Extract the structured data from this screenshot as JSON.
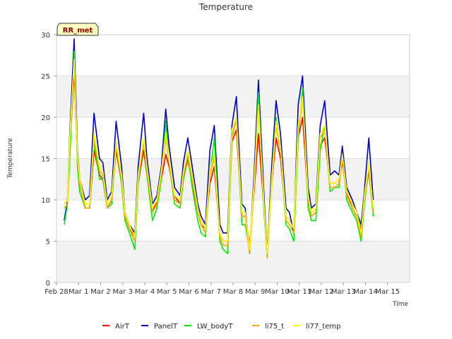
{
  "chart_data": {
    "type": "line",
    "title": "Temperature",
    "xlabel": "Time",
    "ylabel": "Temperature",
    "badge": "RR_met",
    "ylim": [
      0,
      30
    ],
    "yticks": [
      0,
      5,
      10,
      15,
      20,
      25,
      30
    ],
    "xlim": [
      0,
      16
    ],
    "xticks": [
      {
        "x": 0,
        "label": "Feb 28"
      },
      {
        "x": 1,
        "label": "Mar 1"
      },
      {
        "x": 2,
        "label": "Mar 2"
      },
      {
        "x": 3,
        "label": "Mar 3"
      },
      {
        "x": 4,
        "label": "Mar 4"
      },
      {
        "x": 5,
        "label": "Mar 5"
      },
      {
        "x": 6,
        "label": "Mar 6"
      },
      {
        "x": 7,
        "label": "Mar 7"
      },
      {
        "x": 8,
        "label": "Mar 8"
      },
      {
        "x": 9,
        "label": "Mar 9"
      },
      {
        "x": 10,
        "label": "Mar 10"
      },
      {
        "x": 11,
        "label": "Mar 11"
      },
      {
        "x": 12,
        "label": "Mar 12"
      },
      {
        "x": 13,
        "label": "Mar 13"
      },
      {
        "x": 14,
        "label": "Mar 14"
      },
      {
        "x": 15,
        "label": "Mar 15"
      }
    ],
    "grid": true,
    "bands": true,
    "legend_position": "bottom",
    "x": [
      0.35,
      0.5,
      0.6,
      0.8,
      0.95,
      1.05,
      1.3,
      1.5,
      1.7,
      1.95,
      2.1,
      2.3,
      2.5,
      2.7,
      2.95,
      3.1,
      3.3,
      3.55,
      3.7,
      3.95,
      4.1,
      4.35,
      4.55,
      4.75,
      4.95,
      5.1,
      5.35,
      5.6,
      5.75,
      5.95,
      6.15,
      6.4,
      6.55,
      6.75,
      6.95,
      7.15,
      7.4,
      7.55,
      7.75,
      7.95,
      8.15,
      8.4,
      8.55,
      8.75,
      8.95,
      9.15,
      9.4,
      9.55,
      9.75,
      9.95,
      10.15,
      10.4,
      10.55,
      10.75,
      10.95,
      11.15,
      11.4,
      11.55,
      11.75,
      11.95,
      12.15,
      12.4,
      12.6,
      12.8,
      12.95,
      13.15,
      13.4,
      13.6,
      13.8,
      13.95,
      14.15,
      14.35
    ],
    "series": [
      {
        "name": "AirT",
        "color": "#ff0000",
        "values": [
          9.5,
          10.0,
          16.5,
          25.5,
          15.0,
          12.0,
          9.0,
          9.0,
          16.0,
          13.0,
          12.5,
          9.0,
          10.0,
          16.0,
          12.0,
          8.0,
          6.5,
          5.5,
          12.0,
          16.0,
          13.0,
          8.5,
          10.0,
          12.5,
          15.5,
          14.0,
          10.5,
          9.5,
          12.5,
          15.0,
          12.0,
          8.5,
          7.0,
          6.5,
          12.0,
          14.0,
          6.0,
          5.0,
          5.0,
          17.0,
          18.5,
          8.0,
          8.0,
          4.5,
          11.0,
          18.0,
          9.0,
          4.0,
          12.0,
          17.5,
          15.0,
          8.0,
          7.5,
          6.5,
          17.5,
          20.0,
          10.0,
          8.0,
          8.5,
          16.5,
          17.5,
          12.0,
          12.0,
          12.5,
          14.5,
          11.0,
          9.0,
          8.0,
          6.5,
          10.0,
          13.5,
          8.5
        ]
      },
      {
        "name": "PanelT",
        "color": "#0000cc",
        "values": [
          7.5,
          10.0,
          18.0,
          29.5,
          16.0,
          12.5,
          10.0,
          10.5,
          20.5,
          15.0,
          14.5,
          10.0,
          11.0,
          19.5,
          14.0,
          8.5,
          7.0,
          6.0,
          14.0,
          20.5,
          15.0,
          9.5,
          10.5,
          14.0,
          21.0,
          16.5,
          11.5,
          10.5,
          14.5,
          17.5,
          14.0,
          9.5,
          8.0,
          7.0,
          16.0,
          19.0,
          7.0,
          6.0,
          6.0,
          19.0,
          22.5,
          9.5,
          9.0,
          3.5,
          13.0,
          24.5,
          10.5,
          3.5,
          14.0,
          22.0,
          18.0,
          9.0,
          8.5,
          6.0,
          21.5,
          25.0,
          11.5,
          9.0,
          9.5,
          19.0,
          22.0,
          13.0,
          13.5,
          13.0,
          16.5,
          11.5,
          10.0,
          8.5,
          7.0,
          11.0,
          17.5,
          10.0
        ]
      },
      {
        "name": "LW_bodyT",
        "color": "#00ee00",
        "values": [
          7.0,
          9.5,
          15.0,
          28.0,
          14.0,
          11.0,
          9.0,
          9.0,
          17.0,
          12.5,
          12.5,
          9.0,
          9.5,
          16.5,
          12.0,
          7.5,
          6.0,
          4.0,
          12.0,
          17.0,
          13.0,
          7.5,
          9.0,
          12.5,
          19.5,
          14.5,
          9.5,
          9.0,
          12.5,
          15.5,
          11.5,
          7.5,
          6.0,
          5.5,
          13.0,
          17.5,
          5.0,
          4.0,
          3.5,
          17.5,
          20.0,
          7.0,
          7.0,
          4.0,
          11.5,
          23.0,
          8.5,
          3.0,
          12.5,
          20.0,
          16.0,
          7.0,
          6.5,
          5.0,
          17.5,
          23.5,
          9.0,
          7.5,
          7.5,
          16.0,
          19.0,
          11.0,
          11.5,
          11.5,
          15.5,
          10.0,
          8.5,
          7.5,
          5.0,
          9.5,
          14.0,
          8.0
        ]
      },
      {
        "name": "li75_t",
        "color": "#ffa500",
        "values": [
          9.0,
          9.5,
          17.0,
          26.5,
          15.0,
          12.0,
          9.0,
          9.0,
          17.5,
          13.5,
          13.0,
          9.0,
          10.0,
          16.5,
          12.5,
          8.0,
          6.5,
          5.0,
          12.5,
          17.0,
          13.5,
          8.5,
          9.5,
          13.0,
          17.5,
          14.5,
          10.0,
          9.5,
          13.0,
          15.5,
          12.5,
          8.5,
          7.0,
          6.0,
          13.0,
          15.0,
          5.5,
          4.5,
          4.5,
          18.0,
          19.5,
          8.0,
          8.0,
          3.5,
          11.5,
          21.0,
          9.0,
          3.0,
          12.0,
          19.0,
          16.0,
          7.5,
          7.0,
          6.0,
          18.5,
          22.0,
          10.0,
          8.0,
          8.5,
          17.5,
          18.5,
          11.5,
          11.5,
          12.0,
          15.0,
          10.5,
          9.0,
          8.0,
          5.5,
          10.0,
          14.0,
          8.5
        ]
      },
      {
        "name": "li77_temp",
        "color": "#ffff00",
        "values": [
          9.5,
          10.0,
          17.5,
          27.0,
          15.5,
          12.5,
          9.5,
          9.5,
          18.0,
          14.0,
          13.5,
          9.5,
          10.5,
          17.0,
          13.0,
          8.5,
          7.0,
          5.5,
          13.0,
          17.5,
          14.0,
          9.0,
          10.0,
          13.5,
          18.0,
          15.0,
          10.5,
          10.0,
          13.5,
          16.0,
          13.0,
          9.0,
          7.5,
          6.5,
          13.5,
          15.5,
          6.0,
          5.0,
          5.0,
          18.5,
          20.0,
          8.5,
          8.5,
          4.0,
          12.0,
          21.5,
          9.5,
          3.5,
          12.5,
          19.5,
          16.5,
          8.0,
          7.5,
          6.5,
          19.0,
          22.5,
          10.5,
          8.5,
          9.0,
          18.0,
          19.0,
          12.0,
          12.0,
          12.5,
          15.5,
          11.0,
          9.5,
          8.5,
          6.0,
          10.5,
          14.5,
          9.0
        ]
      }
    ]
  }
}
